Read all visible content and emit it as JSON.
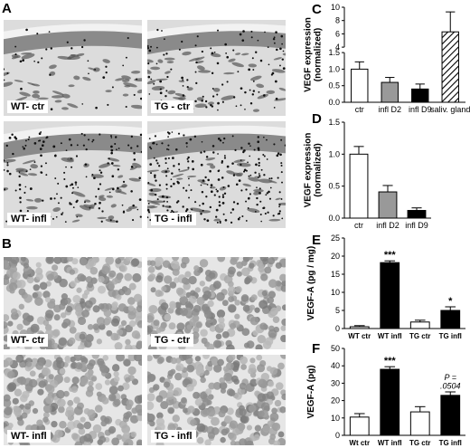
{
  "figure": {
    "panels": [
      {
        "letter": "A"
      },
      {
        "letter": "B"
      },
      {
        "letter": "C"
      },
      {
        "letter": "D"
      },
      {
        "letter": "E"
      },
      {
        "letter": "F"
      }
    ],
    "micrographs_A": [
      "WT- ctr",
      "TG - ctr",
      "WT- infl",
      "TG - infl"
    ],
    "micrographs_B": [
      "WT- ctr",
      "TG - ctr",
      "WT- infl",
      "TG - infl"
    ]
  },
  "chart_data": [
    {
      "id": "C",
      "type": "bar",
      "ylabel": "VEGF expression\n(normalized)",
      "categories": [
        "ctr",
        "infl D2",
        "infl D9",
        "saliv. gland"
      ],
      "values": [
        1.0,
        0.6,
        0.4,
        6.3
      ],
      "errors": [
        0.22,
        0.15,
        0.15,
        3.0
      ],
      "fills": [
        "#ffffff",
        "#999999",
        "#000000",
        "hatch"
      ],
      "broken_axis": true,
      "y_ticks_lower": [
        "0.0",
        "0.5",
        "1.0",
        "1.5"
      ],
      "y_ticks_upper": [
        "4",
        "6",
        "8",
        "10"
      ],
      "ylim_lower": [
        0,
        1.5
      ],
      "ylim_upper": [
        4,
        10
      ]
    },
    {
      "id": "D",
      "type": "bar",
      "ylabel": "VEGF expression\n(normalized)",
      "categories": [
        "ctr",
        "infl D2",
        "infl D9"
      ],
      "values": [
        1.0,
        0.41,
        0.12
      ],
      "errors": [
        0.12,
        0.1,
        0.04
      ],
      "fills": [
        "#ffffff",
        "#999999",
        "#000000"
      ],
      "ylim": [
        0,
        1.5
      ],
      "y_ticks": [
        "0.0",
        "0.5",
        "1.0",
        "1.5"
      ]
    },
    {
      "id": "E",
      "type": "bar",
      "ylabel": "VEGF-A (pg / mg)",
      "categories": [
        "WT ctr",
        "WT infl",
        "TG ctr",
        "TG infl"
      ],
      "values": [
        0.5,
        18.2,
        1.8,
        5.0
      ],
      "errors": [
        0.3,
        0.5,
        0.5,
        1.0
      ],
      "fills": [
        "#ffffff",
        "#000000",
        "#ffffff",
        "#000000"
      ],
      "ylim": [
        0,
        25
      ],
      "y_ticks": [
        "0",
        "5",
        "10",
        "15",
        "20",
        "25"
      ],
      "annotations": [
        "",
        "***",
        "",
        "*"
      ]
    },
    {
      "id": "F",
      "type": "bar",
      "ylabel": "VEGF-A (pg)",
      "categories": [
        "Wt ctr",
        "WT infl",
        "TG ctr",
        "TG infl"
      ],
      "values": [
        10.5,
        38.0,
        13.5,
        23.0
      ],
      "errors": [
        2.0,
        1.5,
        3.0,
        2.0
      ],
      "fills": [
        "#ffffff",
        "#000000",
        "#ffffff",
        "#000000"
      ],
      "ylim": [
        0,
        50
      ],
      "y_ticks": [
        "0",
        "10",
        "20",
        "30",
        "40",
        "50"
      ],
      "annotations": [
        "",
        "***",
        "",
        "P =\n.0504"
      ]
    }
  ]
}
